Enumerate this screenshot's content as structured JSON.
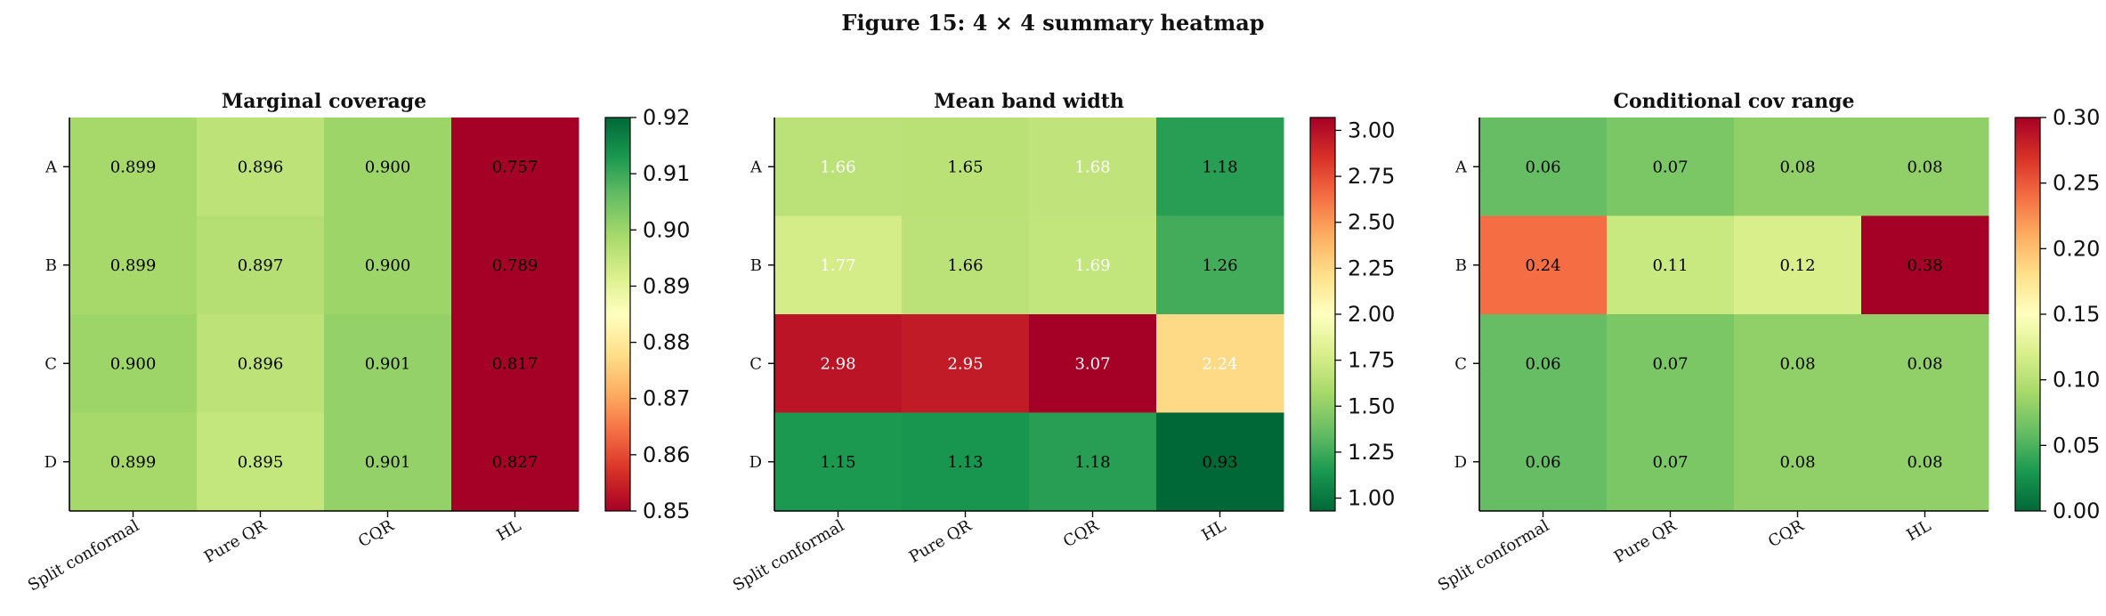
{
  "figure": {
    "title": "Figure 15: 4 × 4 summary heatmap"
  },
  "chart_data": [
    {
      "type": "heatmap",
      "title": "Marginal coverage",
      "rows": [
        "A",
        "B",
        "C",
        "D"
      ],
      "columns": [
        "Split conformal",
        "Pure QR",
        "CQR",
        "HL"
      ],
      "values": [
        [
          0.899,
          0.896,
          0.9,
          0.757
        ],
        [
          0.899,
          0.897,
          0.9,
          0.789
        ],
        [
          0.9,
          0.896,
          0.901,
          0.817
        ],
        [
          0.899,
          0.895,
          0.901,
          0.827
        ]
      ],
      "labels": [
        [
          "0.899",
          "0.896",
          "0.900",
          "0.757"
        ],
        [
          "0.899",
          "0.897",
          "0.900",
          "0.789"
        ],
        [
          "0.900",
          "0.896",
          "0.901",
          "0.817"
        ],
        [
          "0.899",
          "0.895",
          "0.901",
          "0.827"
        ]
      ],
      "colormap": "RdYlGn",
      "vmin": 0.85,
      "vmax": 0.92,
      "colorbar_ticks": [
        "0.85",
        "0.86",
        "0.87",
        "0.88",
        "0.89",
        "0.90",
        "0.91",
        "0.92"
      ]
    },
    {
      "type": "heatmap",
      "title": "Mean band width",
      "rows": [
        "A",
        "B",
        "C",
        "D"
      ],
      "columns": [
        "Split conformal",
        "Pure QR",
        "CQR",
        "HL"
      ],
      "values": [
        [
          1.66,
          1.65,
          1.68,
          1.18
        ],
        [
          1.77,
          1.66,
          1.69,
          1.26
        ],
        [
          2.98,
          2.95,
          3.07,
          2.24
        ],
        [
          1.15,
          1.13,
          1.18,
          0.93
        ]
      ],
      "labels": [
        [
          "1.66",
          "1.65",
          "1.68",
          "1.18"
        ],
        [
          "1.77",
          "1.66",
          "1.69",
          "1.26"
        ],
        [
          "2.98",
          "2.95",
          "3.07",
          "2.24"
        ],
        [
          "1.15",
          "1.13",
          "1.18",
          "0.93"
        ]
      ],
      "label_colors": [
        [
          "#ffffff",
          "#000000",
          "#ffffff",
          "#000000"
        ],
        [
          "#ffffff",
          "#000000",
          "#ffffff",
          "#000000"
        ],
        [
          "#ffffff",
          "#ffffff",
          "#ffffff",
          "#ffffff"
        ],
        [
          "#000000",
          "#000000",
          "#000000",
          "#000000"
        ]
      ],
      "colormap": "RdYlGn_r",
      "vmin": 0.93,
      "vmax": 3.07,
      "colorbar_ticks": [
        "1.00",
        "1.25",
        "1.50",
        "1.75",
        "2.00",
        "2.25",
        "2.50",
        "2.75",
        "3.00"
      ]
    },
    {
      "type": "heatmap",
      "title": "Conditional cov range",
      "rows": [
        "A",
        "B",
        "C",
        "D"
      ],
      "columns": [
        "Split conformal",
        "Pure QR",
        "CQR",
        "HL"
      ],
      "values": [
        [
          0.06,
          0.07,
          0.08,
          0.08
        ],
        [
          0.24,
          0.11,
          0.12,
          0.38
        ],
        [
          0.06,
          0.07,
          0.08,
          0.08
        ],
        [
          0.06,
          0.07,
          0.08,
          0.08
        ]
      ],
      "labels": [
        [
          "0.06",
          "0.07",
          "0.08",
          "0.08"
        ],
        [
          "0.24",
          "0.11",
          "0.12",
          "0.38"
        ],
        [
          "0.06",
          "0.07",
          "0.08",
          "0.08"
        ],
        [
          "0.06",
          "0.07",
          "0.08",
          "0.08"
        ]
      ],
      "colormap": "RdYlGn_r",
      "vmin": 0.0,
      "vmax": 0.3,
      "colorbar_ticks": [
        "0.00",
        "0.05",
        "0.10",
        "0.15",
        "0.20",
        "0.25",
        "0.30"
      ]
    }
  ]
}
